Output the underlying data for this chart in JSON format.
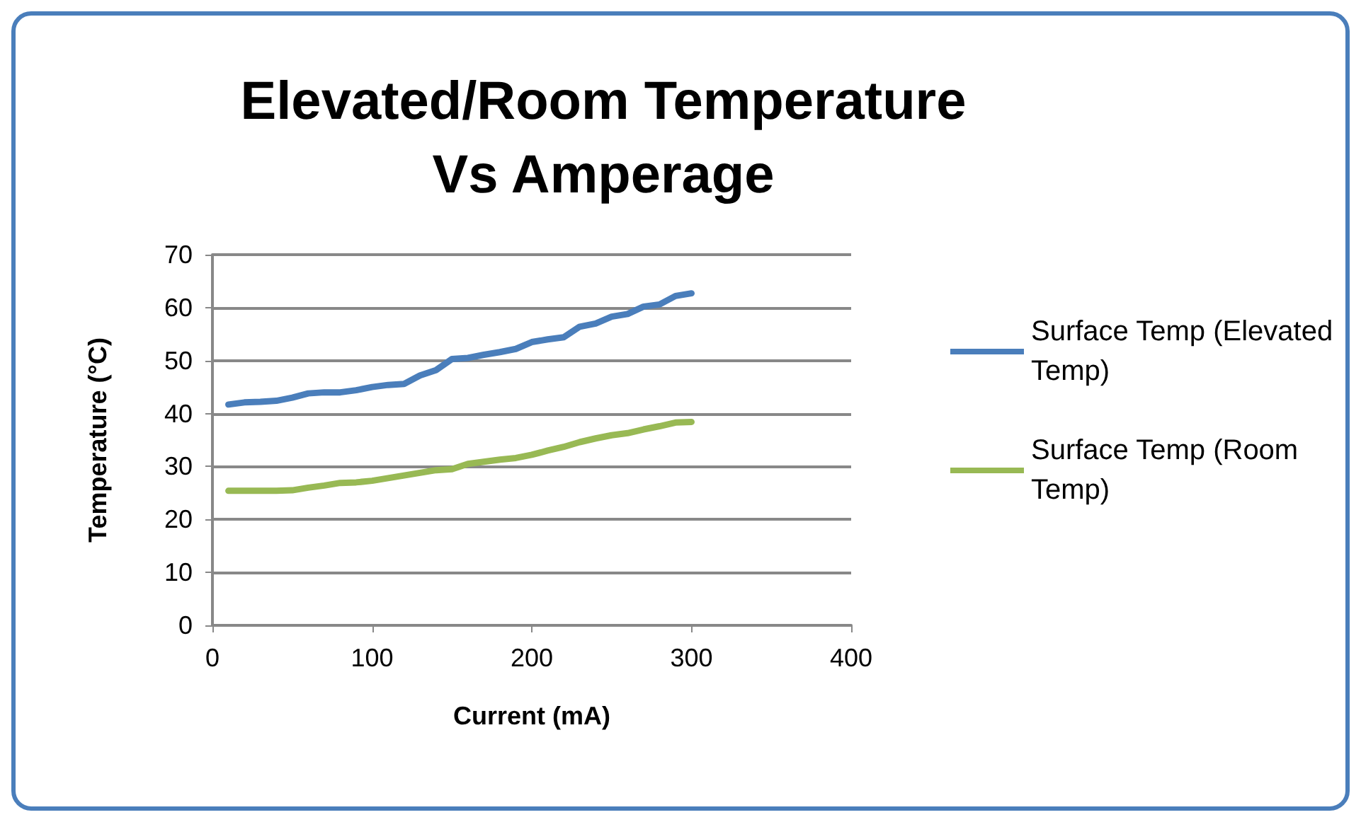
{
  "chart_data": {
    "type": "line",
    "title": "Elevated/Room Temperature\nVs Amperage",
    "xlabel": "Current (mA)",
    "ylabel": "Temperature (°C)",
    "x": [
      10,
      20,
      30,
      40,
      50,
      60,
      70,
      80,
      90,
      100,
      110,
      120,
      130,
      140,
      150,
      160,
      170,
      180,
      190,
      200,
      210,
      220,
      230,
      240,
      250,
      260,
      270,
      280,
      290,
      300
    ],
    "series": [
      {
        "name": "Surface Temp (Elevated Temp)",
        "color": "#4a7ebb",
        "values": [
          41.7,
          42.1,
          42.2,
          42.4,
          43,
          43.8,
          44,
          44,
          44.4,
          45,
          45.4,
          45.6,
          47.2,
          48.2,
          50.3,
          50.5,
          51.1,
          51.6,
          52.2,
          53.5,
          54,
          54.4,
          56.4,
          57,
          58.3,
          58.8,
          60.2,
          60.6,
          62.2,
          62.7
        ]
      },
      {
        "name": "Surface Temp (Room Temp)",
        "color": "#98b954",
        "values": [
          25.4,
          25.4,
          25.4,
          25.4,
          25.5,
          26,
          26.4,
          26.9,
          27,
          27.3,
          27.8,
          28.3,
          28.8,
          29.3,
          29.5,
          30.5,
          30.9,
          31.3,
          31.6,
          32.2,
          33,
          33.7,
          34.6,
          35.3,
          35.9,
          36.3,
          37,
          37.6,
          38.3,
          38.4
        ]
      }
    ],
    "xlim": [
      0,
      400
    ],
    "xticks": [
      0,
      100,
      200,
      300,
      400
    ],
    "ylim": [
      0,
      70
    ],
    "yticks": [
      0,
      10,
      20,
      30,
      40,
      50,
      60,
      70
    ],
    "grid": "y",
    "legend": "right",
    "marker": "none",
    "line_style": "solid"
  }
}
